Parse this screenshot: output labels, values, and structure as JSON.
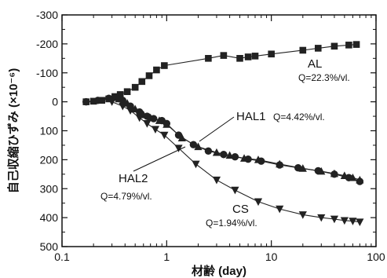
{
  "chart_data": {
    "type": "scatter",
    "title": "",
    "xlabel": "材齢 (day)",
    "ylabel": "自己収縮ひずみ (×10⁻⁶)",
    "x_scale": "log",
    "xlim": [
      0.1,
      100
    ],
    "ylim": [
      500,
      -300
    ],
    "y_inverted": true,
    "x_ticks": [
      0.1,
      1,
      10,
      100
    ],
    "x_tick_labels": [
      "0.1",
      "1",
      "10",
      "100"
    ],
    "y_ticks": [
      -300,
      -200,
      -100,
      0,
      100,
      200,
      300,
      400,
      500
    ],
    "y_tick_labels": [
      "-300",
      "-200",
      "-100",
      "0",
      "100",
      "200",
      "300",
      "400",
      "500"
    ],
    "grid": false,
    "series": [
      {
        "name": "AL",
        "marker": "square",
        "points": [
          [
            0.17,
            0
          ],
          [
            0.2,
            -2
          ],
          [
            0.24,
            -5
          ],
          [
            0.28,
            -10
          ],
          [
            0.32,
            -18
          ],
          [
            0.36,
            -25
          ],
          [
            0.42,
            -35
          ],
          [
            0.5,
            -50
          ],
          [
            0.58,
            -70
          ],
          [
            0.68,
            -90
          ],
          [
            0.8,
            -110
          ],
          [
            0.95,
            -125
          ],
          [
            2.5,
            -150
          ],
          [
            3.5,
            -160
          ],
          [
            5,
            -150
          ],
          [
            6,
            -155
          ],
          [
            7,
            -158
          ],
          [
            10,
            -165
          ],
          [
            20,
            -178
          ],
          [
            28,
            -185
          ],
          [
            40,
            -192
          ],
          [
            55,
            -196
          ],
          [
            65,
            -198
          ]
        ]
      },
      {
        "name": "HAL1",
        "marker": "circle",
        "points": [
          [
            0.17,
            0
          ],
          [
            0.22,
            -5
          ],
          [
            0.28,
            -12
          ],
          [
            0.33,
            -15
          ],
          [
            0.38,
            -5
          ],
          [
            0.45,
            15
          ],
          [
            0.55,
            35
          ],
          [
            0.65,
            50
          ],
          [
            0.75,
            58
          ],
          [
            0.9,
            65
          ],
          [
            1.0,
            75
          ],
          [
            1.3,
            115
          ],
          [
            1.8,
            148
          ],
          [
            2.5,
            170
          ],
          [
            3.5,
            182
          ],
          [
            4.5,
            190
          ],
          [
            6,
            198
          ],
          [
            8,
            205
          ],
          [
            12,
            218
          ],
          [
            18,
            228
          ],
          [
            28,
            238
          ],
          [
            40,
            250
          ],
          [
            55,
            262
          ],
          [
            70,
            275
          ]
        ]
      },
      {
        "name": "HAL2",
        "marker": "triangle-up",
        "points": [
          [
            0.35,
            -10
          ],
          [
            0.42,
            5
          ],
          [
            0.5,
            25
          ],
          [
            0.6,
            45
          ],
          [
            0.7,
            55
          ],
          [
            0.85,
            65
          ],
          [
            1.0,
            78
          ],
          [
            1.4,
            125
          ],
          [
            2.0,
            155
          ],
          [
            3.0,
            175
          ],
          [
            4.0,
            185
          ],
          [
            5.5,
            195
          ],
          [
            7.5,
            200
          ],
          [
            12,
            215
          ],
          [
            20,
            230
          ],
          [
            30,
            240
          ],
          [
            40,
            248
          ],
          [
            50,
            255
          ],
          [
            60,
            262
          ],
          [
            70,
            270
          ]
        ]
      },
      {
        "name": "CS",
        "marker": "triangle-down",
        "points": [
          [
            0.3,
            0
          ],
          [
            0.38,
            15
          ],
          [
            0.45,
            30
          ],
          [
            0.55,
            55
          ],
          [
            0.65,
            75
          ],
          [
            0.78,
            95
          ],
          [
            0.95,
            115
          ],
          [
            1.3,
            160
          ],
          [
            1.9,
            215
          ],
          [
            3.0,
            270
          ],
          [
            4.5,
            305
          ],
          [
            7.5,
            345
          ],
          [
            12,
            370
          ],
          [
            20,
            390
          ],
          [
            30,
            400
          ],
          [
            40,
            405
          ],
          [
            50,
            410
          ],
          [
            60,
            412
          ],
          [
            70,
            415
          ]
        ]
      }
    ],
    "annotations": [
      {
        "id": "al",
        "label": "AL",
        "q": "Q=22.3%/vl."
      },
      {
        "id": "hal1",
        "label": "HAL1",
        "q": "Q=4.42%/vl."
      },
      {
        "id": "hal2",
        "label": "HAL2",
        "q": "Q=4.79%/vl."
      },
      {
        "id": "cs",
        "label": "CS",
        "q": "Q=1.94%/vl."
      }
    ]
  }
}
